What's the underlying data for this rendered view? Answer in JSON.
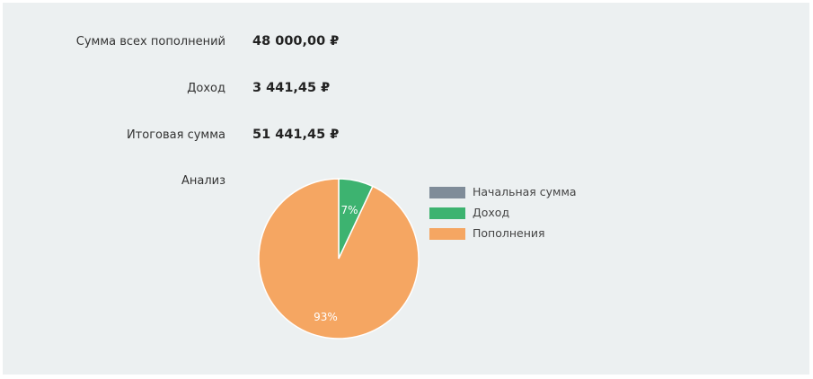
{
  "summary": {
    "total_deposits_label": "Сумма всех пополнений",
    "total_deposits_value": "48 000,00 ₽",
    "income_label": "Доход",
    "income_value": "3 441,45 ₽",
    "final_label": "Итоговая сумма",
    "final_value": "51 441,45 ₽",
    "analysis_label": "Анализ"
  },
  "colors": {
    "background": "#ecf0f1",
    "initial": "#7f8c99",
    "income": "#3db370",
    "deposits": "#f5a662",
    "slice_label": "#ffffff"
  },
  "chart_data": {
    "type": "pie",
    "title": "",
    "series": [
      {
        "name": "Начальная сумма",
        "value": 0,
        "label": ""
      },
      {
        "name": "Доход",
        "value": 7,
        "label": "7%"
      },
      {
        "name": "Пополнения",
        "value": 93,
        "label": "93%"
      }
    ],
    "legend_position": "right"
  }
}
